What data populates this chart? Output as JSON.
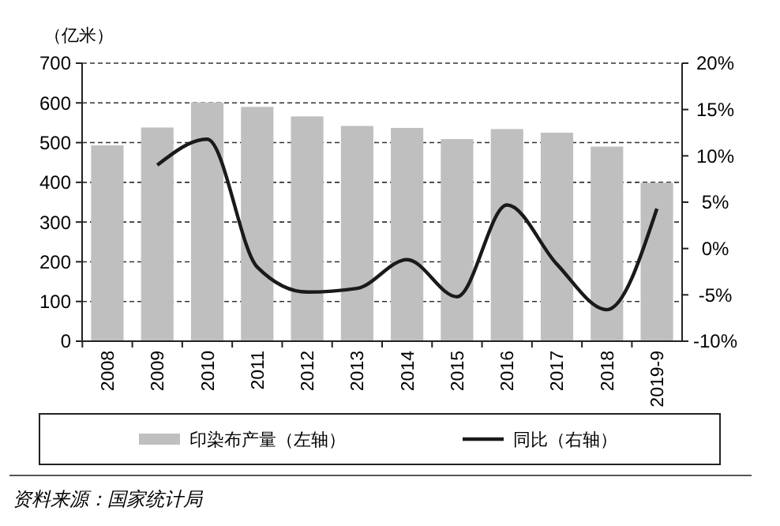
{
  "chart_data": {
    "type": "bar",
    "ylabel": "（亿米）",
    "categories": [
      "2008",
      "2009",
      "2010",
      "2011",
      "2012",
      "2013",
      "2014",
      "2015",
      "2016",
      "2017",
      "2018",
      "2019-9"
    ],
    "series": [
      {
        "name": "印染布产量（左轴）",
        "color": "#bfbfbf",
        "values": [
          493,
          538,
          601,
          590,
          566,
          542,
          537,
          509,
          534,
          525,
          490,
          399
        ]
      },
      {
        "name": "同比（右轴）",
        "type": "line",
        "axis": "y2",
        "color": "#1a1a1a",
        "values": [
          null,
          9.0,
          11.8,
          -2.0,
          -4.7,
          -4.3,
          -1.2,
          -5.2,
          4.7,
          -1.7,
          -6.6,
          4.3
        ]
      }
    ],
    "ylim": [
      0,
      700
    ],
    "yticks": [
      0,
      100,
      200,
      300,
      400,
      500,
      600,
      700
    ],
    "y2lim": [
      -10,
      20
    ],
    "y2ticks": [
      {
        "value": -10,
        "label": "-10%"
      },
      {
        "value": -5,
        "label": "-5%"
      },
      {
        "value": 0,
        "label": "0%"
      },
      {
        "value": 5,
        "label": "5%"
      },
      {
        "value": 10,
        "label": "10%"
      },
      {
        "value": 15,
        "label": "15%"
      },
      {
        "value": 20,
        "label": "20%"
      }
    ],
    "grid": "y",
    "legend": "bottom",
    "marker": "none",
    "line_style": "solid",
    "annotations": [
      "资料来源：国家统计局"
    ]
  }
}
